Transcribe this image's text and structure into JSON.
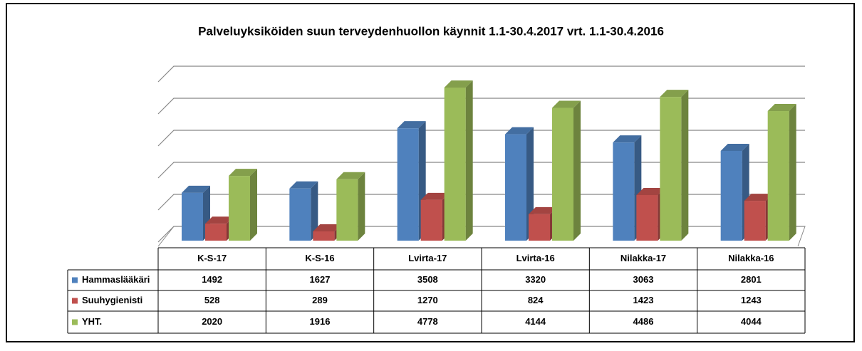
{
  "chart_data": {
    "type": "bar3d",
    "title": "Palveluyksiköiden suun terveydenhuollon  käynnit 1.1-30.4.2017 vrt. 1.1-30.4.2016",
    "categories": [
      "K-S-17",
      "K-S-16",
      "Lvirta-17",
      "Lvirta-16",
      "Nilakka-17",
      "Nilakka-16"
    ],
    "series": [
      {
        "name": "Hammaslääkäri",
        "color": "#4f81bd",
        "values": [
          1492,
          1627,
          3508,
          3320,
          3063,
          2801
        ]
      },
      {
        "name": "Suuhygienisti",
        "color": "#c0504d",
        "values": [
          528,
          289,
          1270,
          824,
          1423,
          1243
        ]
      },
      {
        "name": "YHT.",
        "color": "#9bbb59",
        "values": [
          2020,
          1916,
          4778,
          4144,
          4486,
          4044
        ]
      }
    ],
    "ylim": [
      0,
      5000
    ],
    "yticks": [
      0,
      1000,
      2000,
      3000,
      4000,
      5000
    ],
    "grid": true
  }
}
